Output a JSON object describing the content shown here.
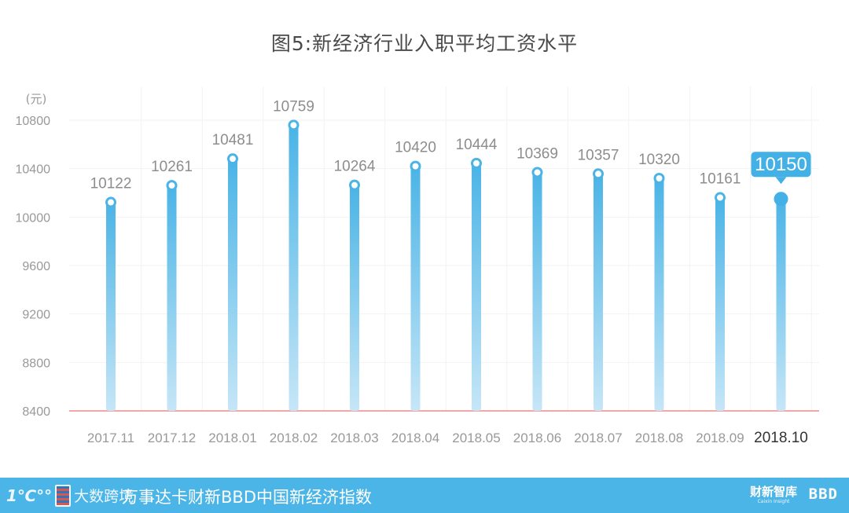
{
  "title": "图5:新经济行业入职平均工资水平",
  "chart_data": {
    "type": "bar",
    "unit_label": "(元)",
    "categories": [
      "2017.11",
      "2017.12",
      "2018.01",
      "2018.02",
      "2018.03",
      "2018.04",
      "2018.05",
      "2018.06",
      "2018.07",
      "2018.08",
      "2018.09",
      "2018.10"
    ],
    "values": [
      10122,
      10261,
      10481,
      10759,
      10264,
      10420,
      10444,
      10369,
      10357,
      10320,
      10161,
      10150
    ],
    "yticks": [
      8400,
      8800,
      9200,
      9600,
      10000,
      10400,
      10800
    ],
    "ylim": [
      8400,
      11000
    ],
    "highlight_index": 11,
    "colors": {
      "bar_top": "#4ab4e6",
      "bar_bottom": "#c6e6f7",
      "highlight": "#43b1e6",
      "baseline": "#ef8a8a",
      "grid": "#f2f2f2",
      "label": "#8d8d8d",
      "axis_text": "#999999"
    }
  },
  "footer": {
    "logo_mark": "1℃°°",
    "logo_text": "大数跨境",
    "text": "万事达卡财新BBD中国新经济指数",
    "brand_cn": "财新智库",
    "brand_en": "Caixin Insight",
    "brand_bbd": "BBD"
  }
}
